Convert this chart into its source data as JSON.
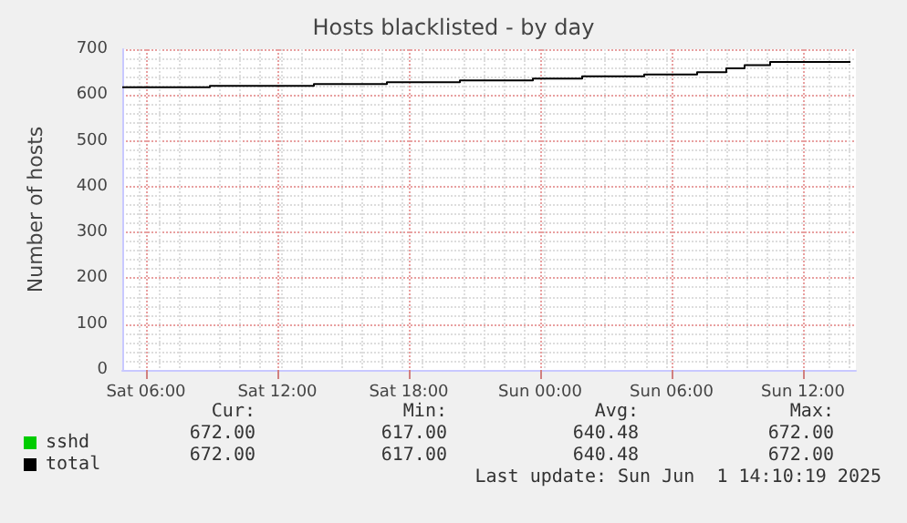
{
  "chart_data": {
    "type": "step",
    "title": "Hosts blacklisted - by day",
    "ylabel": "Number of hosts",
    "x": [
      "2025-05-31T04:55",
      "2025-05-31T08:55",
      "2025-05-31T13:40",
      "2025-05-31T17:00",
      "2025-05-31T20:20",
      "2025-05-31T23:40",
      "2025-06-01T01:55",
      "2025-06-01T04:45",
      "2025-06-01T07:10",
      "2025-06-01T08:30",
      "2025-06-01T09:20",
      "2025-06-01T10:30",
      "2025-06-01T14:10"
    ],
    "series": [
      {
        "name": "sshd",
        "color": "#00cc00",
        "values": [
          null,
          null,
          null,
          null,
          null,
          null,
          null,
          null,
          null,
          null,
          null,
          null,
          null
        ]
      },
      {
        "name": "total",
        "color": "#000000",
        "values": [
          617,
          620,
          624,
          628,
          632,
          636,
          641,
          645,
          650,
          658,
          665,
          672,
          672
        ]
      }
    ],
    "xlim": [
      "2025-05-31T04:55",
      "2025-06-01T14:25"
    ],
    "xticks": [
      {
        "value": "2025-05-31T06:00",
        "label": "Sat 06:00"
      },
      {
        "value": "2025-05-31T12:00",
        "label": "Sat 12:00"
      },
      {
        "value": "2025-05-31T18:00",
        "label": "Sat 18:00"
      },
      {
        "value": "2025-06-01T00:00",
        "label": "Sun 00:00"
      },
      {
        "value": "2025-06-01T06:00",
        "label": "Sun 06:00"
      },
      {
        "value": "2025-06-01T12:00",
        "label": "Sun 12:00"
      }
    ],
    "ylim": [
      0,
      700
    ],
    "yticks": [
      0,
      100,
      200,
      300,
      400,
      500,
      600,
      700
    ],
    "grid": true,
    "legend": "bottom left",
    "marker": "none",
    "line_style": "solid",
    "annotations": [
      "Cur:",
      "Min:",
      "Avg:",
      "Max:",
      "672.00",
      "617.00",
      "640.48",
      "672.00",
      "672.00",
      "617.00",
      "640.48",
      "672.00",
      "Last update: Sun Jun  1 14:10:19 2025"
    ]
  }
}
